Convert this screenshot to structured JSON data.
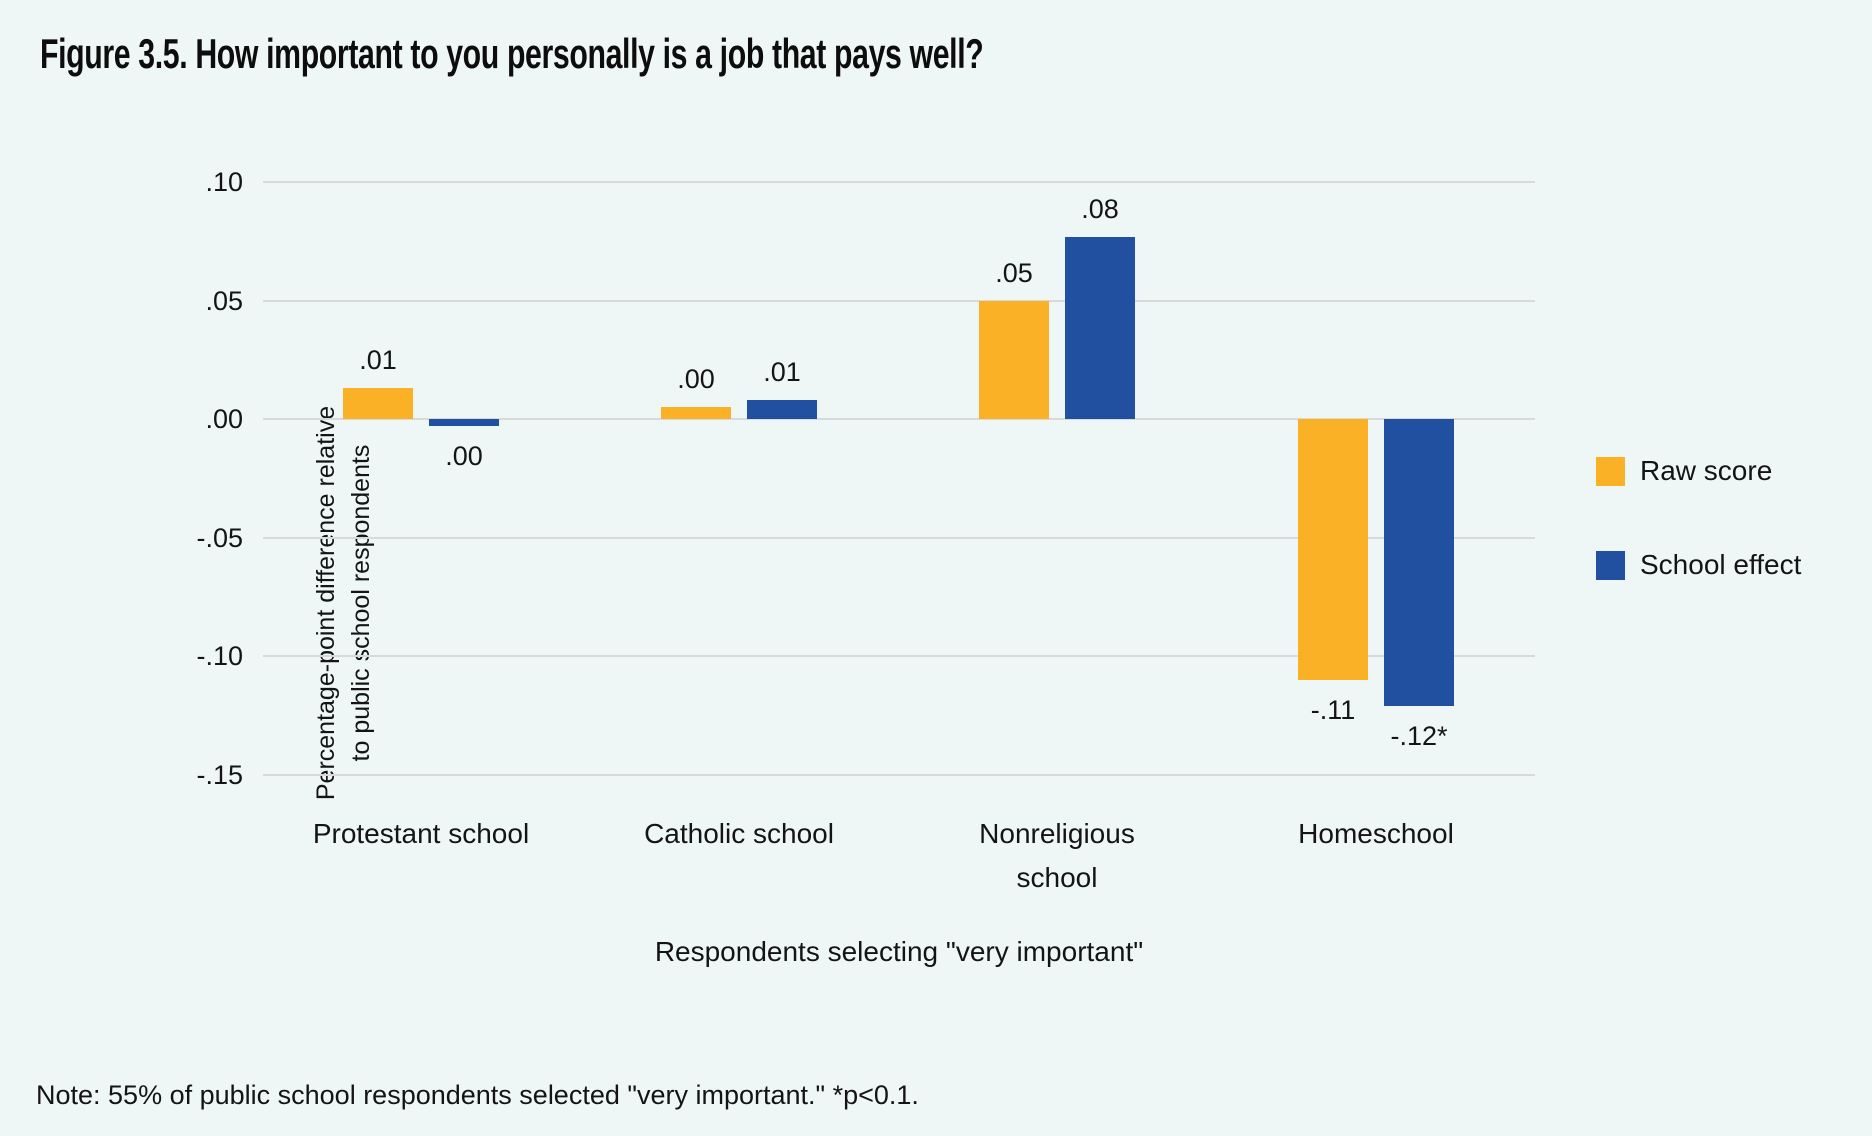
{
  "figure": {
    "title": "Figure 3.5. How important to you personally is a job that pays well?",
    "note": "Note: 55% of public school respondents selected \"very important.\" *p<0.1."
  },
  "chart_data": {
    "type": "bar",
    "title": "Figure 3.5. How important to you personally is a job that pays well?",
    "categories": [
      "Protestant school",
      "Catholic school",
      "Nonreligious school",
      "Homeschool"
    ],
    "categories_display": [
      [
        "Protestant school"
      ],
      [
        "Catholic school"
      ],
      [
        "Nonreligious",
        "school"
      ],
      [
        "Homeschool"
      ]
    ],
    "series": [
      {
        "name": "Raw score",
        "color": "#FBB125",
        "labels": [
          ".01",
          ".00",
          ".05",
          "-.11"
        ],
        "values": [
          0.01,
          0.0,
          0.05,
          -0.11
        ],
        "plot_values": [
          0.013,
          0.005,
          0.05,
          -0.11
        ]
      },
      {
        "name": "School effect",
        "color": "#2150A1",
        "labels": [
          ".00",
          ".01",
          ".08",
          "-.12*"
        ],
        "values": [
          0.0,
          0.01,
          0.08,
          -0.12
        ],
        "plot_values": [
          -0.003,
          0.008,
          0.077,
          -0.121
        ]
      }
    ],
    "xlabel": "Respondents selecting \"very important\"",
    "ylabel": "Percentage-point difference relative to public school respondents",
    "ylabel_lines": [
      "Percentage-point difference relative",
      "to public school respondents"
    ],
    "ylim": [
      -0.15,
      0.1
    ],
    "yticks": [
      0.1,
      0.05,
      0.0,
      -0.05,
      -0.1,
      -0.15
    ],
    "ytick_labels": [
      ".10",
      ".05",
      ".00",
      "-.05",
      "-.10",
      "-.15"
    ],
    "grid": true,
    "legend_position": "right",
    "significance_note": "*p<0.1"
  },
  "colors": {
    "background": "#EFF7F6",
    "gridline": "#D7DAD9",
    "text": "#141414",
    "raw_score": "#FBB125",
    "school_effect": "#2150A1"
  }
}
